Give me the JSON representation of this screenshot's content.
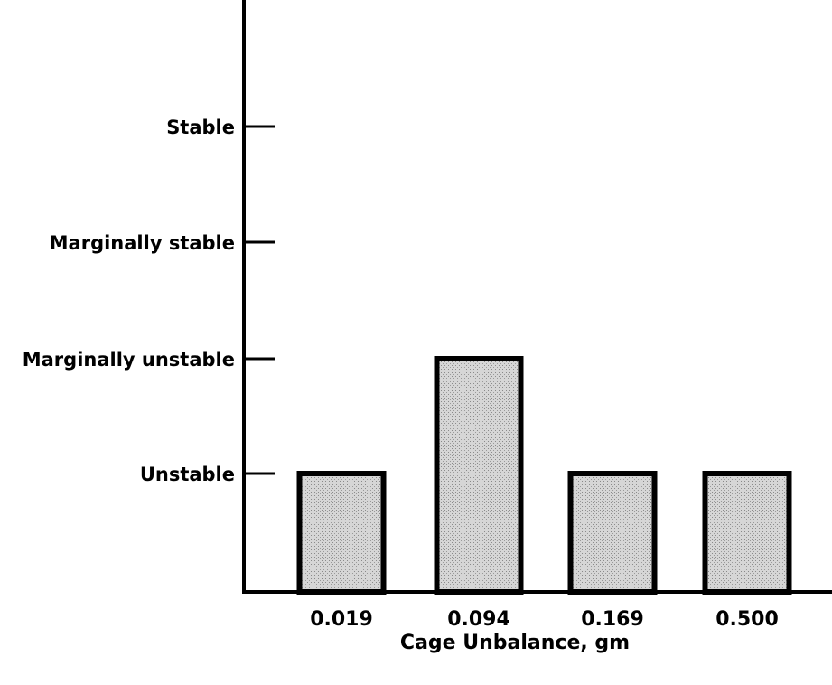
{
  "chart_data": {
    "type": "bar",
    "title": "",
    "xlabel": "Cage Unbalance, gm",
    "ylabel": "",
    "categories": [
      "0.019",
      "0.094",
      "0.169",
      "0.500"
    ],
    "y_levels": [
      "Unstable",
      "Marginally unstable",
      "Marginally stable",
      "Stable"
    ],
    "values": [
      1,
      2,
      1,
      1
    ],
    "ylim": [
      0,
      4
    ],
    "grid": false,
    "legend": "none",
    "colors": {
      "bar_fill": "#cfcfcf",
      "bar_edge": "#000000",
      "axis": "#000000"
    }
  }
}
